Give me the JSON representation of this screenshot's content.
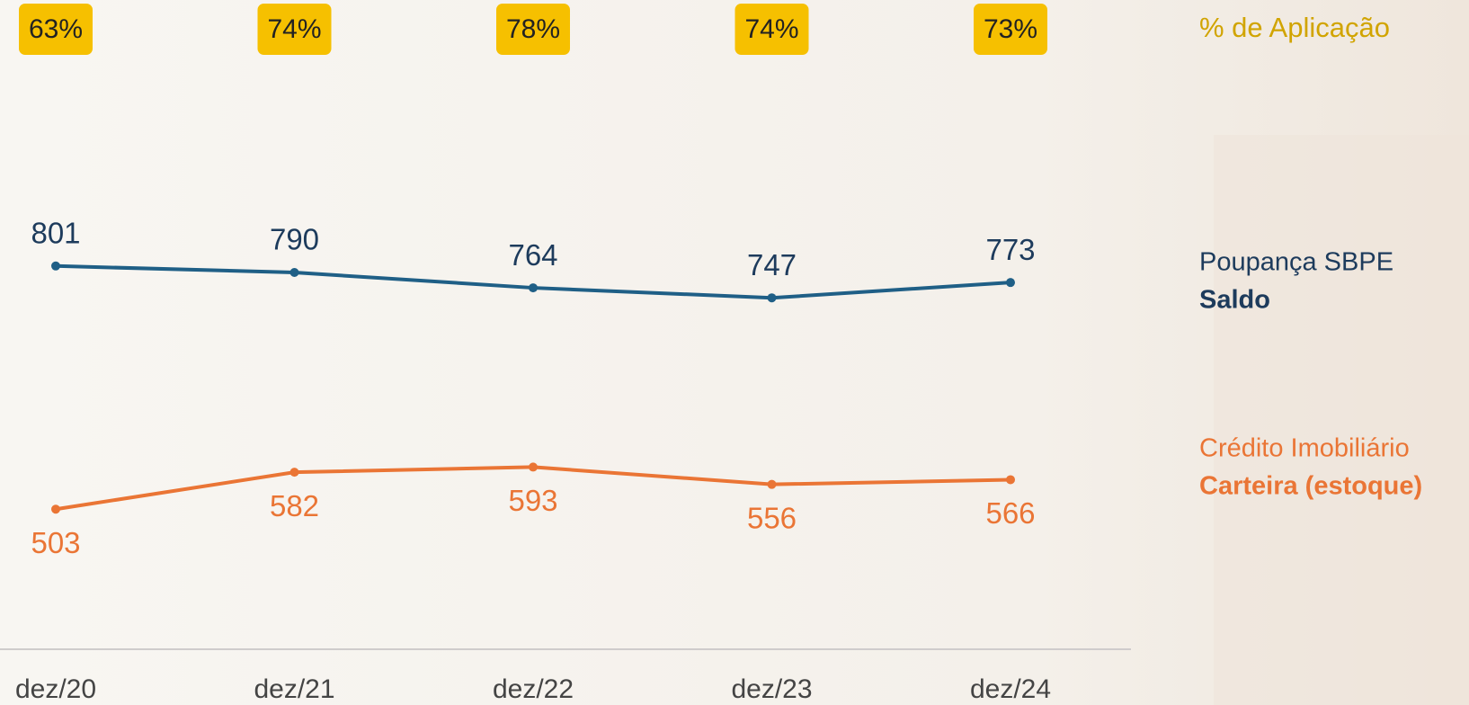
{
  "chart_data": {
    "type": "line",
    "categories": [
      "dez/20",
      "dez/21",
      "dez/22",
      "dez/23",
      "dez/24"
    ],
    "ylim": [
      200,
      1130
    ],
    "y2lim": [
      265,
      1438
    ],
    "badges": {
      "name": "% de Aplicação",
      "color": "#f6c000",
      "values": [
        63,
        74,
        78,
        74,
        73
      ],
      "value_labels": [
        "63%",
        "74%",
        "78%",
        "74%",
        "73%"
      ]
    },
    "series": [
      {
        "name": "Poupança SBPE",
        "measure": "Saldo",
        "color": "#1f5f86",
        "label_color": "#1d3b5c",
        "values": [
          801,
          790,
          764,
          747,
          773
        ]
      },
      {
        "name": "Crédito Imobiliário",
        "measure": "Carteira (estoque)",
        "color": "#ea7535",
        "label_color": "#ea7535",
        "axis": "y2",
        "values": [
          503,
          582,
          593,
          556,
          566
        ]
      }
    ]
  }
}
